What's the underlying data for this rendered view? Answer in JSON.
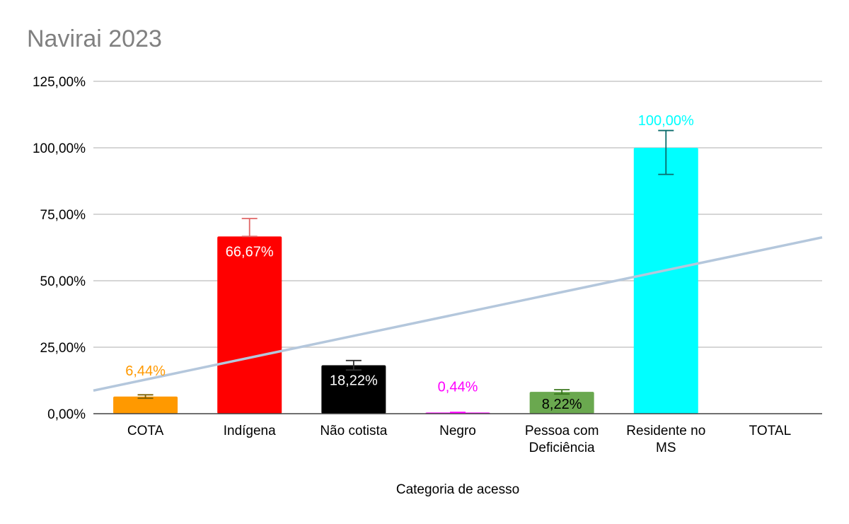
{
  "chart_data": {
    "type": "bar",
    "title": "Navirai 2023",
    "xlabel": "Categoria de acesso",
    "ylabel": "",
    "ylim": [
      0,
      125
    ],
    "yticks": [
      "0,00%",
      "25,00%",
      "50,00%",
      "75,00%",
      "100,00%",
      "125,00%"
    ],
    "categories": [
      "COTA",
      "Indígena",
      "Não cotista",
      "Negro",
      "Pessoa com Deficiência",
      "Residente no MS",
      "TOTAL"
    ],
    "category_lines": [
      [
        "COTA"
      ],
      [
        "Indígena"
      ],
      [
        "Não cotista"
      ],
      [
        "Negro"
      ],
      [
        "Pessoa com",
        "Deficiência"
      ],
      [
        "Residente no",
        "MS"
      ],
      [
        "TOTAL"
      ]
    ],
    "values": [
      6.44,
      66.67,
      18.22,
      0.44,
      8.22,
      100.0,
      null
    ],
    "labels": [
      "6,44%",
      "66,67%",
      "18,22%",
      "0,44%",
      "8,22%",
      "100,00%",
      ""
    ],
    "colors": [
      "#FF9900",
      "#FF0000",
      "#000000",
      "#FF00FF",
      "#6AA84F",
      "#00FFFF",
      "#cccccc"
    ],
    "label_colors": [
      "#FF9900",
      "#FFFFFF",
      "#FFFFFF",
      "#FF00FF",
      "#000000",
      "#00FFFF",
      "#000000"
    ],
    "error_bars": [
      {
        "low": 5.8,
        "high": 7.1,
        "color": "#7f6000"
      },
      {
        "low": 66.67,
        "high": 73.4,
        "color": "#e06666"
      },
      {
        "low": 16.4,
        "high": 20.0,
        "color": "#333333"
      },
      {
        "low": 0.4,
        "high": 0.48,
        "color": "#FF00FF"
      },
      {
        "low": 7.4,
        "high": 9.0,
        "color": "#38761d"
      },
      {
        "low": 90.0,
        "high": 106.5,
        "color": "#0b6b6b"
      },
      null
    ],
    "trendline": {
      "type": "linear",
      "start": 8.7,
      "end": 66.3,
      "color": "#b4c7dc"
    },
    "grid": true,
    "legend": "none"
  }
}
